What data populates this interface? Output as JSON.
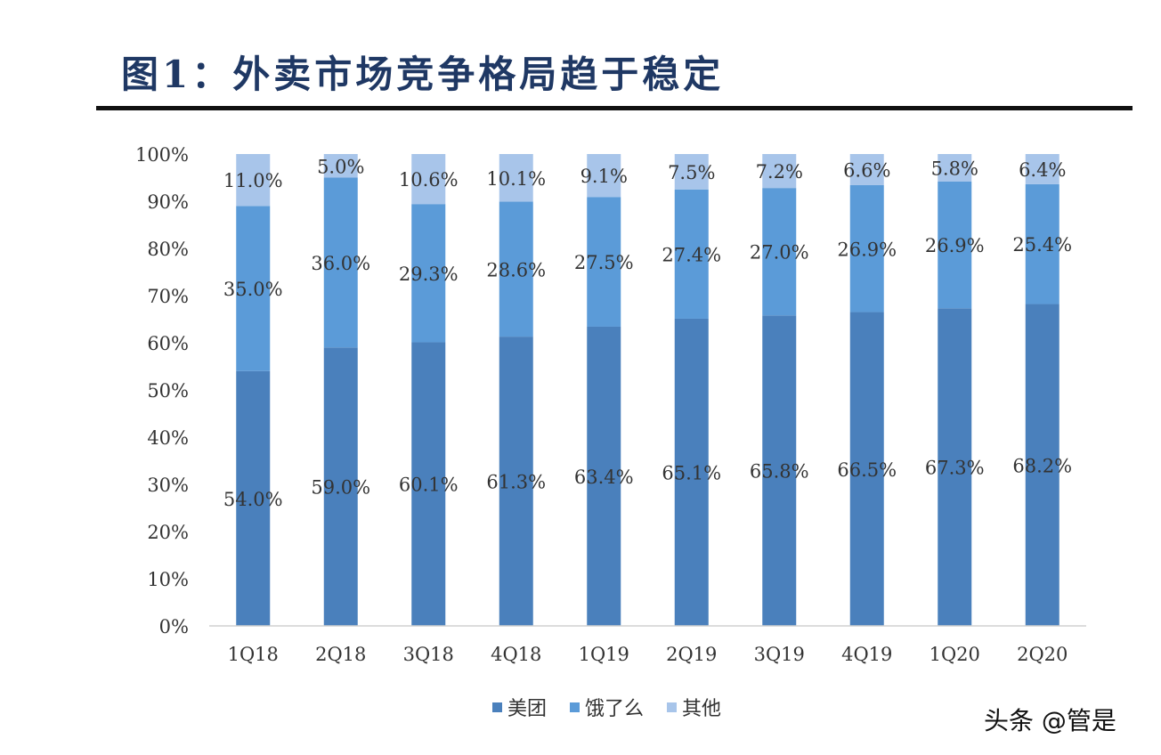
{
  "title": "图1：外卖市场竞争格局趋于稳定",
  "watermark": "头条 @管是",
  "chart_data": {
    "type": "bar",
    "stacked": true,
    "percent_stacked": true,
    "title": "图1：外卖市场竞争格局趋于稳定",
    "xlabel": "",
    "ylabel": "",
    "ylim": [
      0,
      100
    ],
    "yticks": [
      "0%",
      "10%",
      "20%",
      "30%",
      "40%",
      "50%",
      "60%",
      "70%",
      "80%",
      "90%",
      "100%"
    ],
    "categories": [
      "1Q18",
      "2Q18",
      "3Q18",
      "4Q18",
      "1Q19",
      "2Q19",
      "3Q19",
      "4Q19",
      "1Q20",
      "2Q20"
    ],
    "series": [
      {
        "name": "美团",
        "color": "#4a80bc",
        "values": [
          54.0,
          59.0,
          60.1,
          61.3,
          63.4,
          65.1,
          65.8,
          66.5,
          67.3,
          68.2
        ]
      },
      {
        "name": "饿了么",
        "color": "#5b9bd8",
        "values": [
          35.0,
          36.0,
          29.3,
          28.6,
          27.5,
          27.4,
          27.0,
          26.9,
          26.9,
          25.4
        ]
      },
      {
        "name": "其他",
        "color": "#a8c5ea",
        "values": [
          11.0,
          5.0,
          10.6,
          10.1,
          9.1,
          7.5,
          7.2,
          6.6,
          5.8,
          6.4
        ]
      }
    ],
    "data_labels": true,
    "grid": false,
    "legend_position": "bottom"
  }
}
